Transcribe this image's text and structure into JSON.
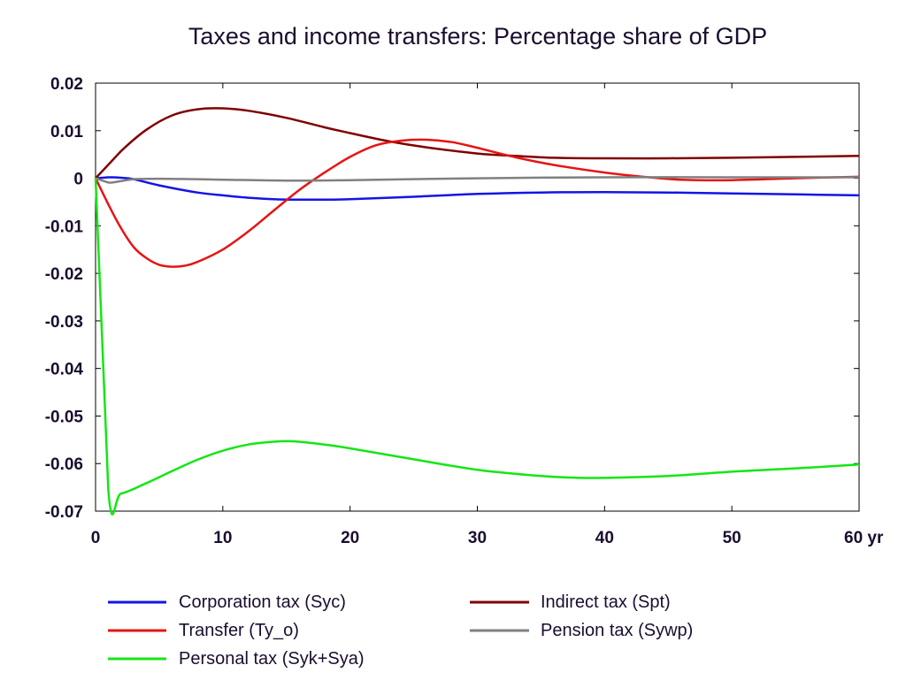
{
  "chart_data": {
    "type": "line",
    "title": "Taxes and income transfers: Percentage share of GDP",
    "x_unit_label": "yr",
    "xlim": [
      0,
      60
    ],
    "ylim": [
      -0.07,
      0.02
    ],
    "x_ticks": [
      0,
      10,
      20,
      30,
      40,
      50,
      60
    ],
    "x_tick_labels": [
      "0",
      "10",
      "20",
      "30",
      "40",
      "50",
      "60 yr"
    ],
    "y_ticks": [
      0.02,
      0.01,
      0,
      -0.01,
      -0.02,
      -0.03,
      -0.04,
      -0.05,
      -0.06,
      -0.07
    ],
    "y_tick_labels": [
      "0.02",
      "0.01",
      "0",
      "-0.01",
      "-0.02",
      "-0.03",
      "-0.04",
      "-0.05",
      "-0.06",
      "-0.07"
    ],
    "grid": false,
    "legend_position": "bottom",
    "series": [
      {
        "name": "Corporation tax (Syc)",
        "color": "#1414e6",
        "x": [
          0,
          1,
          2,
          3,
          5,
          8,
          10,
          12,
          14,
          16,
          18,
          20,
          25,
          30,
          35,
          40,
          45,
          50,
          55,
          60
        ],
        "y": [
          0,
          0.0002,
          0.0001,
          -0.0002,
          -0.0015,
          -0.003,
          -0.0036,
          -0.0041,
          -0.0044,
          -0.0045,
          -0.0045,
          -0.0044,
          -0.0039,
          -0.0033,
          -0.003,
          -0.0029,
          -0.003,
          -0.0032,
          -0.0034,
          -0.0036
        ]
      },
      {
        "name": "Indirect tax (Spt)",
        "color": "#800000",
        "x": [
          0,
          2,
          4,
          6,
          8,
          10,
          12,
          15,
          18,
          20,
          23,
          26,
          30,
          33,
          36,
          40,
          45,
          50,
          55,
          60
        ],
        "y": [
          0,
          0.0057,
          0.0102,
          0.0132,
          0.0145,
          0.0147,
          0.0142,
          0.0127,
          0.0107,
          0.0095,
          0.0078,
          0.0065,
          0.0052,
          0.0047,
          0.0043,
          0.0042,
          0.0042,
          0.0043,
          0.0045,
          0.0047
        ]
      },
      {
        "name": "Transfer (Ty_o)",
        "color": "#e61414",
        "x": [
          0,
          1,
          2,
          3,
          4,
          5,
          6,
          7,
          8,
          10,
          12,
          14,
          16,
          18,
          20,
          22,
          24,
          26,
          28,
          30,
          33,
          36,
          40,
          43,
          46,
          50,
          55,
          60
        ],
        "y": [
          0,
          -0.0055,
          -0.0105,
          -0.0145,
          -0.0168,
          -0.0182,
          -0.0186,
          -0.0184,
          -0.0176,
          -0.015,
          -0.0112,
          -0.0068,
          -0.0025,
          0.0012,
          0.0045,
          0.0069,
          0.0079,
          0.0081,
          0.0076,
          0.0064,
          0.0044,
          0.0028,
          0.0012,
          0.0003,
          -0.0003,
          -0.0004,
          0.0,
          0.0003
        ]
      },
      {
        "name": "Pension tax (Sywp)",
        "color": "#808080",
        "x": [
          0,
          1,
          2,
          3,
          5,
          8,
          10,
          15,
          20,
          30,
          40,
          50,
          60
        ],
        "y": [
          0,
          -0.0009,
          -0.0006,
          -0.0002,
          -0.0001,
          -0.0002,
          -0.0003,
          -0.0005,
          -0.0004,
          0.0,
          0.0002,
          0.0002,
          0.0002
        ]
      },
      {
        "name": "Personal tax (Syk+Sya)",
        "color": "#14e614",
        "x": [
          0,
          1,
          2,
          4,
          6,
          8,
          10,
          12,
          14,
          15,
          16,
          18,
          20,
          25,
          30,
          35,
          38,
          40,
          45,
          50,
          55,
          60
        ],
        "y": [
          0,
          -0.0655,
          -0.0663,
          -0.0641,
          -0.0616,
          -0.0592,
          -0.0573,
          -0.056,
          -0.0554,
          -0.0553,
          -0.0554,
          -0.056,
          -0.0568,
          -0.0591,
          -0.0613,
          -0.0626,
          -0.063,
          -0.063,
          -0.0626,
          -0.0617,
          -0.061,
          -0.0602
        ]
      }
    ],
    "legend_order": [
      0,
      1,
      2,
      3,
      4
    ]
  }
}
